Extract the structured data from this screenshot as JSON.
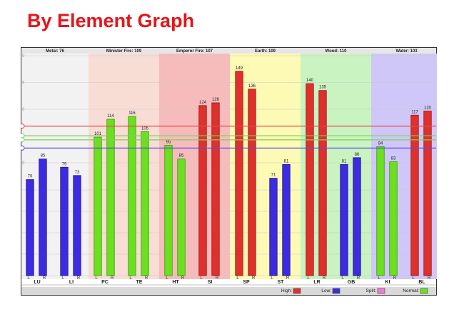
{
  "page": {
    "title": "By Element Graph"
  },
  "chart_data": {
    "type": "bar",
    "title": "",
    "xlabel": "",
    "ylabel": "",
    "ylim": [
      0,
      160
    ],
    "y_tick_labels": [
      "0",
      "5",
      "0",
      "5",
      "0"
    ],
    "grid": true,
    "legend": "bottom",
    "elements": [
      {
        "label": "Metal: 76",
        "color": "#f2f2f2",
        "meridians": [
          "LU",
          "LI"
        ]
      },
      {
        "label": "Minister Fire: 109",
        "color": "#f8ddd5",
        "meridians": [
          "PC",
          "TE"
        ]
      },
      {
        "label": "Emperor Fire: 107",
        "color": "#f6bcbc",
        "meridians": [
          "HT",
          "SI"
        ]
      },
      {
        "label": "Earth: 109",
        "color": "#fcfab4",
        "meridians": [
          "SP",
          "ST"
        ]
      },
      {
        "label": "Wood: 110",
        "color": "#c9f4c1",
        "meridians": [
          "LR",
          "GB"
        ]
      },
      {
        "label": "Water: 103",
        "color": "#cfc7f8",
        "meridians": [
          "KI",
          "BL"
        ]
      }
    ],
    "side_labels": {
      "left": "L",
      "right": "R"
    },
    "reference_lines": [
      {
        "name": "High",
        "value": 109,
        "color": "#e8474b"
      },
      {
        "name": "Normal",
        "value": 102,
        "color": "#7fd05a"
      },
      {
        "name": "Normal",
        "value": 99,
        "color": "#7fd05a"
      },
      {
        "name": "Low",
        "value": 93,
        "color": "#5a4fe0"
      }
    ],
    "meridians": [
      {
        "name": "LU",
        "left": 70,
        "right": 85,
        "left_status": "Low",
        "right_status": "Low"
      },
      {
        "name": "LI",
        "left": 79,
        "right": 73,
        "left_status": "Low",
        "right_status": "Low"
      },
      {
        "name": "PC",
        "left": 101,
        "right": 114,
        "left_status": "Normal",
        "right_status": "Normal"
      },
      {
        "name": "TE",
        "left": 116,
        "right": 105,
        "left_status": "Normal",
        "right_status": "Normal"
      },
      {
        "name": "HT",
        "left": 95,
        "right": 85,
        "left_status": "Normal",
        "right_status": "Normal"
      },
      {
        "name": "SI",
        "left": 124,
        "right": 126,
        "left_status": "High",
        "right_status": "High"
      },
      {
        "name": "SP",
        "left": 149,
        "right": 136,
        "left_status": "High",
        "right_status": "High"
      },
      {
        "name": "ST",
        "left": 71,
        "right": 81,
        "left_status": "Low",
        "right_status": "Low"
      },
      {
        "name": "LR",
        "left": 140,
        "right": 135,
        "left_status": "High",
        "right_status": "High"
      },
      {
        "name": "GB",
        "left": 81,
        "right": 86,
        "left_status": "Low",
        "right_status": "Low"
      },
      {
        "name": "KI",
        "left": 94,
        "right": 83,
        "left_status": "Normal",
        "right_status": "Normal"
      },
      {
        "name": "BL",
        "left": 117,
        "right": 120,
        "left_status": "High",
        "right_status": "High"
      }
    ],
    "legend_items": [
      {
        "label": "High:",
        "color": "#e0302c"
      },
      {
        "label": "Low:",
        "color": "#3c2be0"
      },
      {
        "label": "Split:",
        "color": "#f07ad8"
      },
      {
        "label": "Normal:",
        "color": "#6be01e"
      }
    ]
  }
}
